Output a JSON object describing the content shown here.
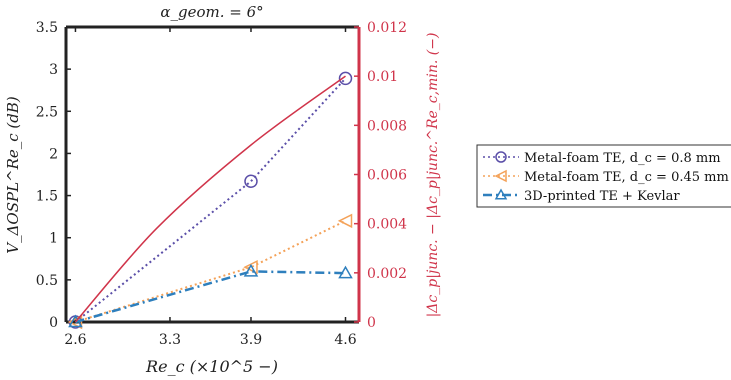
{
  "chart_data": {
    "type": "line",
    "title": "α_geom. = 6°",
    "xlabel": "Re_c (×10^5 −)",
    "ylabel_left": "V_ΔOSPL^Re_c (dB)",
    "ylabel_right": "|Δc_p|junc. − |Δc_p|junc.^Re_c,min. (−)",
    "x_ticks": [
      "2.6",
      "3.3",
      "3.9",
      "4.6"
    ],
    "x_tick_values": [
      2.6,
      3.3,
      3.9,
      4.6
    ],
    "xlim": [
      2.53,
      4.7
    ],
    "ylim_left": [
      0,
      3.5
    ],
    "y_ticks_left": [
      "0",
      "0.5",
      "1",
      "1.5",
      "2",
      "2.5",
      "3",
      "3.5"
    ],
    "ylim_right": [
      0,
      0.012
    ],
    "y_ticks_right": [
      "0",
      "0.002",
      "0.004",
      "0.006",
      "0.008",
      "0.01",
      "0.012"
    ],
    "series": [
      {
        "name": "Metal-foam TE, d_c = 0.8 mm",
        "axis": "left",
        "x": [
          2.6,
          3.9,
          4.6
        ],
        "y": [
          0,
          1.67,
          2.89
        ],
        "marker": "circle",
        "line": "dotted",
        "color": "#5b4fa8"
      },
      {
        "name": "Metal-foam TE, d_c = 0.45 mm",
        "axis": "left",
        "x": [
          2.6,
          3.9,
          4.6
        ],
        "y": [
          0,
          0.65,
          1.2
        ],
        "marker": "triangle-left",
        "line": "dotted",
        "color": "#f4a259"
      },
      {
        "name": "3D-printed TE + Kevlar",
        "axis": "left",
        "x": [
          2.6,
          3.9,
          4.6
        ],
        "y": [
          0,
          0.6,
          0.58
        ],
        "marker": "triangle-up",
        "line": "dashdot",
        "color": "#2e7fbd"
      },
      {
        "axis": "right",
        "x": [
          2.6,
          3.2,
          3.9,
          4.6
        ],
        "y": [
          0,
          0.0038,
          0.0072,
          0.01
        ],
        "marker": "none",
        "line": "solid",
        "color": "#d0344a"
      }
    ],
    "colors": {
      "left_axis": "#333333",
      "right_axis": "#d0344a"
    }
  }
}
